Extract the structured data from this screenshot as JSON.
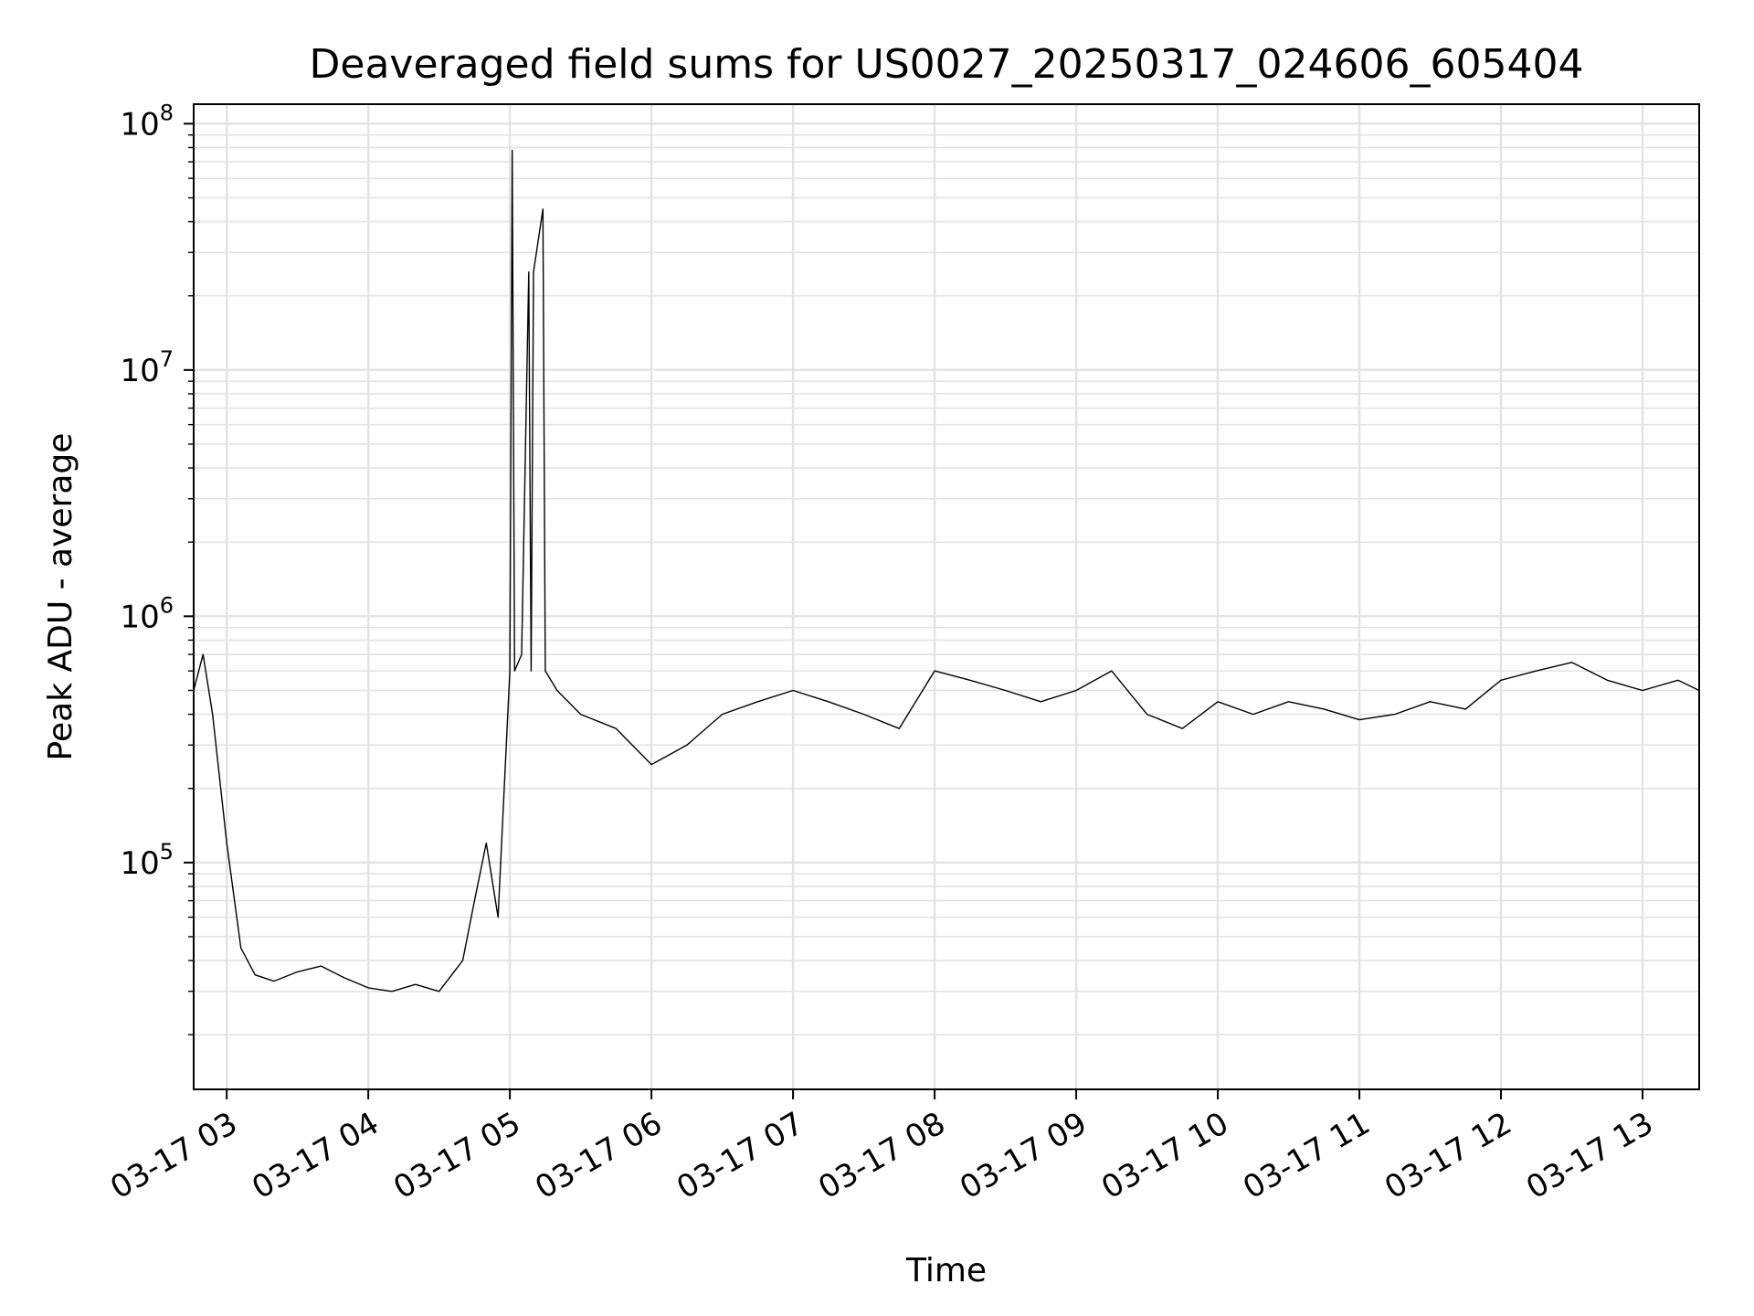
{
  "chart_data": {
    "type": "line",
    "title": "Deaveraged field sums for US0027_20250317_024606_605404",
    "xlabel": "Time",
    "ylabel": "Peak ADU - average",
    "yscale": "log",
    "ylim": [
      12000,
      120000000
    ],
    "xlim": [
      "03-17 02:46",
      "03-17 13:24"
    ],
    "grid": true,
    "line_color": "#000000",
    "x_ticks": [
      "03-17 03",
      "03-17 04",
      "03-17 05",
      "03-17 06",
      "03-17 07",
      "03-17 08",
      "03-17 09",
      "03-17 10",
      "03-17 11",
      "03-17 12",
      "03-17 13"
    ],
    "y_ticks": [
      {
        "base": "10",
        "exp": "5",
        "value": 100000
      },
      {
        "base": "10",
        "exp": "6",
        "value": 1000000
      },
      {
        "base": "10",
        "exp": "7",
        "value": 10000000
      },
      {
        "base": "10",
        "exp": "8",
        "value": 100000000
      }
    ],
    "series": [
      {
        "x": [
          "03-17 02:46",
          "03-17 02:50",
          "03-17 02:54",
          "03-17 03:00",
          "03-17 03:06",
          "03-17 03:12",
          "03-17 03:20",
          "03-17 03:30",
          "03-17 03:40",
          "03-17 03:50",
          "03-17 04:00",
          "03-17 04:10",
          "03-17 04:20",
          "03-17 04:30",
          "03-17 04:40",
          "03-17 04:45",
          "03-17 04:50",
          "03-17 04:55",
          "03-17 05:00",
          "03-17 05:01",
          "03-17 05:02",
          "03-17 05:05",
          "03-17 05:08",
          "03-17 05:09",
          "03-17 05:10",
          "03-17 05:14",
          "03-17 05:15",
          "03-17 05:20",
          "03-17 05:30",
          "03-17 05:45",
          "03-17 06:00",
          "03-17 06:15",
          "03-17 06:30",
          "03-17 06:45",
          "03-17 07:00",
          "03-17 07:15",
          "03-17 07:30",
          "03-17 07:45",
          "03-17 08:00",
          "03-17 08:15",
          "03-17 08:30",
          "03-17 08:45",
          "03-17 09:00",
          "03-17 09:15",
          "03-17 09:30",
          "03-17 09:45",
          "03-17 10:00",
          "03-17 10:15",
          "03-17 10:30",
          "03-17 10:45",
          "03-17 11:00",
          "03-17 11:15",
          "03-17 11:30",
          "03-17 11:45",
          "03-17 12:00",
          "03-17 12:15",
          "03-17 12:30",
          "03-17 12:45",
          "03-17 13:00",
          "03-17 13:15",
          "03-17 13:24"
        ],
        "y": [
          500000,
          700000,
          400000,
          120000,
          45000,
          35000,
          33000,
          36000,
          38000,
          34000,
          31000,
          30000,
          32000,
          30000,
          40000,
          70000,
          120000,
          60000,
          600000,
          78000000,
          600000,
          700000,
          25000000,
          600000,
          25000000,
          45000000,
          600000,
          500000,
          400000,
          350000,
          250000,
          300000,
          400000,
          450000,
          500000,
          450000,
          400000,
          350000,
          600000,
          550000,
          500000,
          450000,
          500000,
          600000,
          400000,
          350000,
          450000,
          400000,
          450000,
          420000,
          380000,
          400000,
          450000,
          420000,
          550000,
          600000,
          650000,
          550000,
          500000,
          550000,
          500000
        ]
      }
    ]
  }
}
